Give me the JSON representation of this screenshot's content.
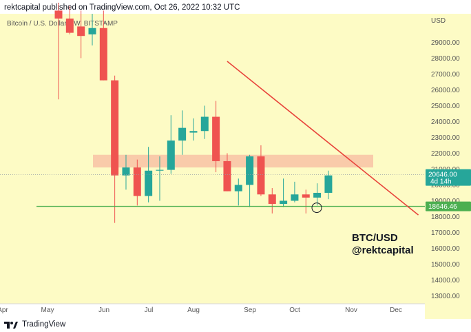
{
  "header": {
    "text": "rektcapital published on TradingView.com, Oct 26, 2022 10:32 UTC"
  },
  "footer": {
    "brand": "TradingView"
  },
  "chart_data": {
    "type": "candlestick",
    "title": "Bitcoin / U.S. Dollar, 1W, BITSTAMP",
    "currency": "USD",
    "annotation_lines": [
      "BTC/USD",
      "@rektcapital"
    ],
    "ylim": [
      12500,
      30800
    ],
    "yticks": [
      13000,
      14000,
      15000,
      16000,
      17000,
      18000,
      19000,
      20000,
      21000,
      22000,
      23000,
      24000,
      25000,
      26000,
      27000,
      28000,
      29000
    ],
    "ytick_labels": [
      "13000.00",
      "14000.00",
      "15000.00",
      "16000.00",
      "17000.00",
      "18000.00",
      "19000.00",
      "20000.00",
      "21000.00",
      "22000.00",
      "23000.00",
      "24000.00",
      "25000.00",
      "26000.00",
      "27000.00",
      "28000.00",
      "29000.00"
    ],
    "x_axis": [
      "Apr",
      "May",
      "Jun",
      "Jul",
      "Aug",
      "Sep",
      "Oct",
      "Nov",
      "Dec"
    ],
    "candles": [
      {
        "open": 31000,
        "high": 31500,
        "low": 25400,
        "close": 30500
      },
      {
        "open": 30500,
        "high": 31300,
        "low": 29500,
        "close": 29600
      },
      {
        "open": 30000,
        "high": 31000,
        "low": 28000,
        "close": 29400
      },
      {
        "open": 29500,
        "high": 30800,
        "low": 28800,
        "close": 29900
      },
      {
        "open": 29900,
        "high": 31000,
        "low": 26600,
        "close": 26600
      },
      {
        "open": 26600,
        "high": 26900,
        "low": 17600,
        "close": 20600
      },
      {
        "open": 20600,
        "high": 21900,
        "low": 19700,
        "close": 21100
      },
      {
        "open": 21100,
        "high": 21600,
        "low": 18700,
        "close": 19300
      },
      {
        "open": 19300,
        "high": 22400,
        "low": 18900,
        "close": 20900
      },
      {
        "open": 20900,
        "high": 21800,
        "low": 19000,
        "close": 20950
      },
      {
        "open": 20950,
        "high": 24400,
        "low": 20700,
        "close": 22800
      },
      {
        "open": 22800,
        "high": 24700,
        "low": 21900,
        "close": 23600
      },
      {
        "open": 23300,
        "high": 24200,
        "low": 22800,
        "close": 23400
      },
      {
        "open": 23400,
        "high": 25000,
        "low": 22900,
        "close": 24300
      },
      {
        "open": 24300,
        "high": 25300,
        "low": 20800,
        "close": 21500
      },
      {
        "open": 21500,
        "high": 22000,
        "low": 19600,
        "close": 19600
      },
      {
        "open": 19600,
        "high": 20400,
        "low": 18700,
        "close": 20000
      },
      {
        "open": 20000,
        "high": 21900,
        "low": 18600,
        "close": 21800
      },
      {
        "open": 21800,
        "high": 22500,
        "low": 19300,
        "close": 19400
      },
      {
        "open": 19400,
        "high": 19800,
        "low": 18200,
        "close": 18800
      },
      {
        "open": 18800,
        "high": 20400,
        "low": 18600,
        "close": 19000
      },
      {
        "open": 19000,
        "high": 20200,
        "low": 18900,
        "close": 19400
      },
      {
        "open": 19400,
        "high": 19700,
        "low": 18200,
        "close": 19200
      },
      {
        "open": 19200,
        "high": 20100,
        "low": 18700,
        "close": 19500
      },
      {
        "open": 19500,
        "high": 20900,
        "low": 19100,
        "close": 20600
      }
    ],
    "support_level": 18646.46,
    "support_label": "18646.46",
    "last_price": 20646.0,
    "last_price_label": "20646.00",
    "countdown": "4d 14h",
    "resistance_zone": [
      21100,
      21900
    ],
    "trendline": {
      "from": {
        "week": 15,
        "price": 27800
      },
      "to": {
        "week": 32,
        "price": 18100
      }
    },
    "colors": {
      "background": "#fdfbc5",
      "up": "#26a69a",
      "down": "#ef5350",
      "zone": "#f8c2a4",
      "support": "#4caf50",
      "trendline": "#e8453c",
      "badge_support": "#4caf50",
      "badge_price": "#26a69a"
    }
  }
}
